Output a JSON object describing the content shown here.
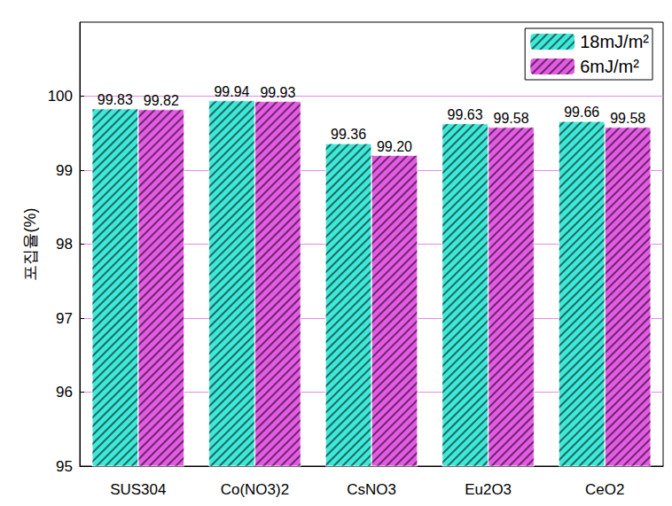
{
  "chart_data": {
    "type": "bar",
    "y_label": "포집율(%)",
    "categories": [
      "SUS304",
      "Co(NO3)2",
      "CsNO3",
      "Eu2O3",
      "CeO2"
    ],
    "series": [
      {
        "name": "18mJ/m²",
        "color": "#3ee8d8",
        "values": [
          99.83,
          99.94,
          99.36,
          99.63,
          99.66
        ],
        "value_labels": [
          "99.83",
          "99.94",
          "99.36",
          "99.63",
          "99.66"
        ]
      },
      {
        "name": "6mJ/m²",
        "color": "#e45ae4",
        "values": [
          99.82,
          99.93,
          99.2,
          99.58,
          99.58
        ],
        "value_labels": [
          "99.82",
          "99.93",
          "99.20",
          "99.58",
          "99.58"
        ]
      }
    ],
    "ylim": [
      95,
      101
    ],
    "yticks": [
      95,
      96,
      97,
      98,
      99,
      100
    ],
    "grid": true,
    "legend": "upper right",
    "data_labels": true
  }
}
